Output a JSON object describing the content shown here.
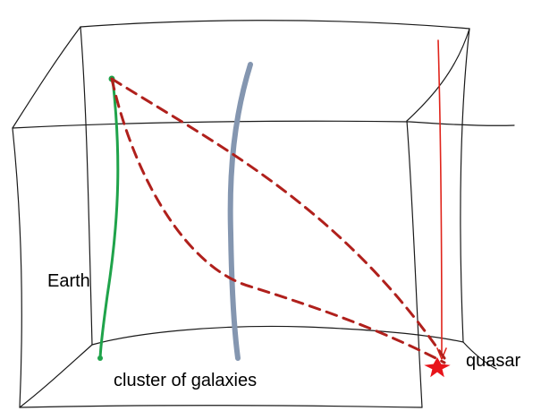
{
  "labels": {
    "earth": "Earth",
    "cluster": "cluster of galaxies",
    "quasar": "quasar"
  },
  "colors": {
    "box": "#1a1a1a",
    "earth_worldline": "#1fa34a",
    "cluster_worldline": "#8496b0",
    "quasar_worldline": "#e0241b",
    "light_paths": "#b0201c",
    "quasar_star": "#e8141b"
  },
  "icons": {
    "quasar_marker": "star-icon"
  }
}
